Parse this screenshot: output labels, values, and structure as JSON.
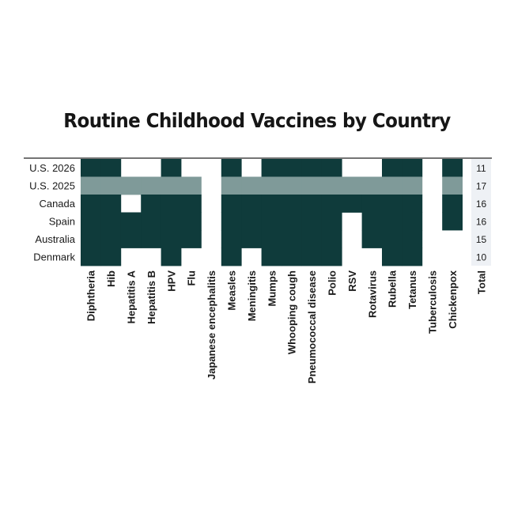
{
  "chart_data": {
    "type": "heatmap",
    "title": "Routine Childhood Vaccines by Country",
    "rows": [
      "U.S. 2026",
      "U.S. 2025",
      "Canada",
      "Spain",
      "Australia",
      "Denmark"
    ],
    "columns": [
      "Diphtheria",
      "Hib",
      "Hepatitis A",
      "Hepatitis B",
      "HPV",
      "Flu",
      "Japanese encephalitis",
      "Measles",
      "Meningitis",
      "Mumps",
      "Whooping cough",
      "Pneumococcal disease",
      "Polio",
      "RSV",
      "Rotavirus",
      "Rubella",
      "Tetanus",
      "Tuberculosis",
      "Chickenpox"
    ],
    "total_label": "Total",
    "totals": [
      11,
      17,
      16,
      16,
      15,
      10
    ],
    "matrix": [
      [
        1,
        1,
        0,
        0,
        1,
        0,
        0,
        1,
        0,
        1,
        1,
        1,
        1,
        0,
        0,
        1,
        1,
        0,
        1
      ],
      [
        1,
        1,
        1,
        1,
        1,
        1,
        0,
        1,
        1,
        1,
        1,
        1,
        1,
        1,
        1,
        1,
        1,
        0,
        1
      ],
      [
        1,
        1,
        0,
        1,
        1,
        1,
        0,
        1,
        1,
        1,
        1,
        1,
        1,
        1,
        1,
        1,
        1,
        0,
        1
      ],
      [
        1,
        1,
        1,
        1,
        1,
        1,
        0,
        1,
        1,
        1,
        1,
        1,
        1,
        0,
        1,
        1,
        1,
        0,
        1
      ],
      [
        1,
        1,
        1,
        1,
        1,
        1,
        0,
        1,
        1,
        1,
        1,
        1,
        1,
        0,
        1,
        1,
        1,
        0,
        0
      ],
      [
        1,
        1,
        0,
        0,
        1,
        0,
        0,
        1,
        0,
        1,
        1,
        1,
        1,
        0,
        0,
        1,
        1,
        0,
        0
      ]
    ],
    "highlight_row": "U.S. 2025",
    "colors": {
      "filled": "#0f3b3b",
      "highlight": "#7f9a99",
      "total_cell": "#eef1f5",
      "rule": "#222222"
    }
  }
}
